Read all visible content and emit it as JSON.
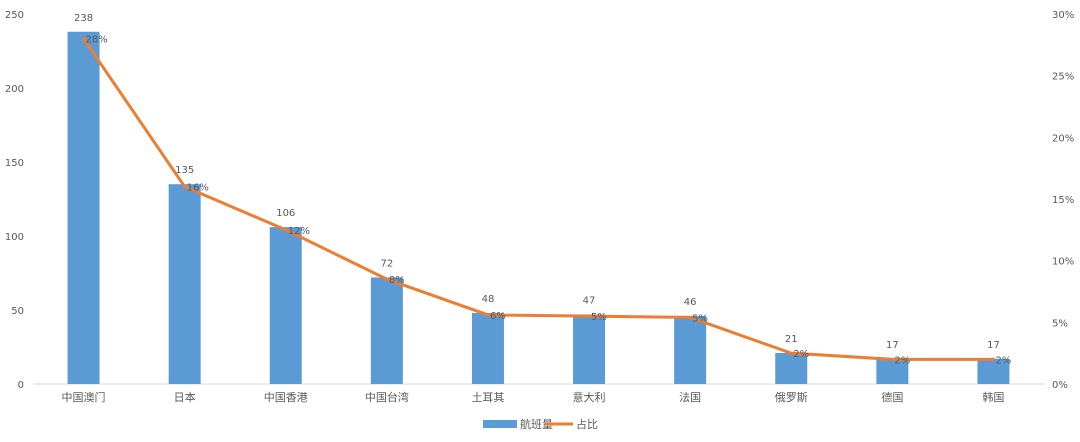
{
  "chart_data": {
    "type": "bar",
    "categories": [
      "中国澳门",
      "日本",
      "中国香港",
      "中国台湾",
      "土耳其",
      "意大利",
      "法国",
      "俄罗斯",
      "德国",
      "韩国"
    ],
    "series": [
      {
        "name": "航班量",
        "type": "bar",
        "axis": "left",
        "color": "#5B9BD5",
        "values": [
          238,
          135,
          106,
          72,
          48,
          47,
          46,
          21,
          17,
          17
        ],
        "labels": [
          "238",
          "135",
          "106",
          "72",
          "48",
          "47",
          "46",
          "21",
          "17",
          "17"
        ]
      },
      {
        "name": "占比",
        "type": "line",
        "axis": "right",
        "color": "#ED7D31",
        "values": [
          28,
          16,
          12.5,
          8.5,
          5.6,
          5.5,
          5.4,
          2.5,
          2,
          2
        ],
        "labels": [
          "28%",
          "16%",
          "12%",
          "8%",
          "6%",
          "5%",
          "5%",
          "2%",
          "2%",
          "2%"
        ]
      }
    ],
    "ylim": [
      0,
      250
    ],
    "yticks": [
      "0",
      "50",
      "100",
      "150",
      "200",
      "250"
    ],
    "y2lim": [
      0,
      30
    ],
    "y2ticks": [
      "0%",
      "5%",
      "10%",
      "15%",
      "20%",
      "25%",
      "30%"
    ],
    "grid": false,
    "legend_position": "bottom"
  }
}
